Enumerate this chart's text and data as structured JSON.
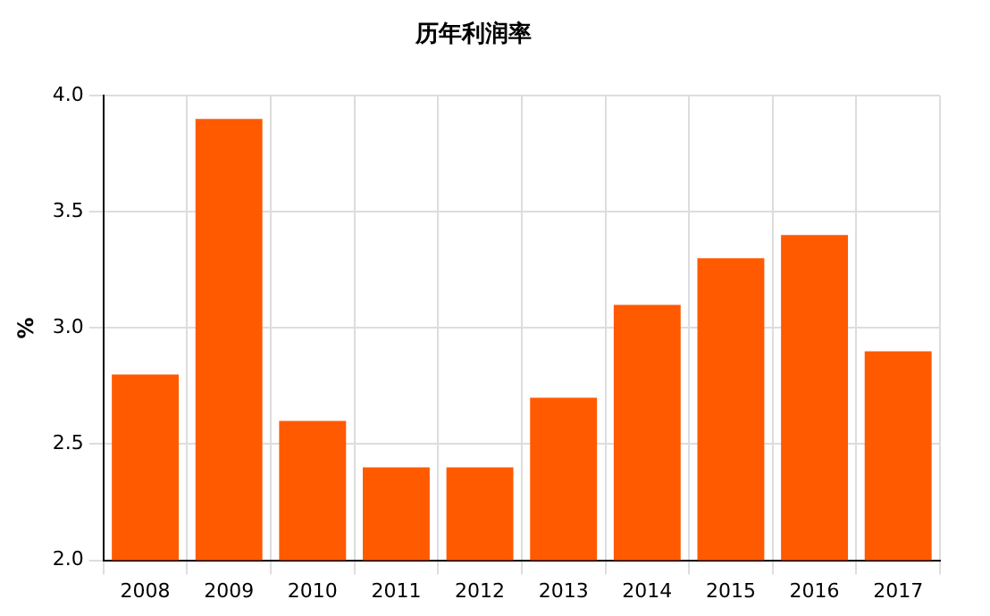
{
  "chart_data": {
    "type": "bar",
    "title": "历年利润率",
    "ylabel": "%",
    "categories": [
      "2008",
      "2009",
      "2010",
      "2011",
      "2012",
      "2013",
      "2014",
      "2015",
      "2016",
      "2017"
    ],
    "values": [
      2.8,
      3.9,
      2.6,
      2.4,
      2.4,
      2.7,
      3.1,
      3.3,
      3.4,
      2.9
    ],
    "color": "#ff5a00",
    "ylim": [
      2.0,
      4.0
    ],
    "yticks": [
      {
        "value": 2.0,
        "label": "2.0"
      },
      {
        "value": 2.5,
        "label": "2.5"
      },
      {
        "value": 3.0,
        "label": "3.0"
      },
      {
        "value": 3.5,
        "label": "3.5"
      },
      {
        "value": 4.0,
        "label": "4.0"
      }
    ],
    "grid": true
  }
}
